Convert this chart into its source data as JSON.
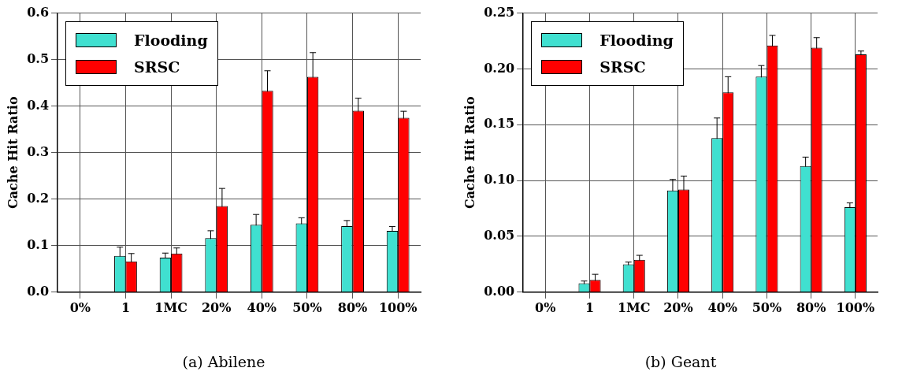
{
  "chart_data": [
    {
      "type": "bar",
      "title": "(a) Abilene",
      "ylabel": "Cache Hit Ratio",
      "categories": [
        "0%",
        "1",
        "1MC",
        "20%",
        "40%",
        "50%",
        "80%",
        "100%"
      ],
      "series": [
        {
          "name": "Flooding",
          "color": "#40e0d0",
          "values": [
            0,
            0.078,
            0.074,
            0.116,
            0.145,
            0.148,
            0.142,
            0.132
          ],
          "errors": [
            null,
            0.019,
            0.01,
            0.016,
            0.022,
            0.012,
            0.012,
            0.009
          ]
        },
        {
          "name": "SRSC",
          "color": "#ff0000",
          "values": [
            0,
            0.066,
            0.083,
            0.185,
            0.433,
            0.463,
            0.39,
            0.375
          ],
          "errors": [
            null,
            0.017,
            0.012,
            0.038,
            0.043,
            0.052,
            0.027,
            0.014
          ]
        }
      ],
      "ylim": [
        0,
        0.6
      ],
      "yticks": [
        {
          "value": 0,
          "label": "0.0"
        },
        0.1,
        0.2,
        0.3,
        0.4,
        0.5,
        0.6
      ],
      "grid": true,
      "legend": "top left"
    },
    {
      "type": "bar",
      "title": "(b) Geant",
      "ylabel": "Cache Hit Ratio",
      "categories": [
        "0%",
        "1",
        "1MC",
        "20%",
        "40%",
        "50%",
        "80%",
        "100%"
      ],
      "series": [
        {
          "name": "Flooding",
          "color": "#40e0d0",
          "values": [
            0,
            0.008,
            0.025,
            0.091,
            0.138,
            0.193,
            0.113,
            0.076
          ],
          "errors": [
            null,
            0.002,
            0.002,
            0.01,
            0.018,
            0.01,
            0.008,
            0.004
          ]
        },
        {
          "name": "SRSC",
          "color": "#ff0000",
          "values": [
            0,
            0.011,
            0.029,
            0.092,
            0.179,
            0.221,
            0.219,
            0.213
          ],
          "errors": [
            null,
            0.005,
            0.004,
            0.012,
            0.014,
            0.009,
            0.009,
            0.003
          ]
        }
      ],
      "ylim": [
        0,
        0.25
      ],
      "yticks": [
        {
          "value": 0,
          "label": "0.00"
        },
        0.05,
        {
          "value": 0.1,
          "label": "0.10"
        },
        0.15,
        {
          "value": 0.2,
          "label": "0.20"
        },
        0.25
      ],
      "grid": true,
      "legend": "top left"
    }
  ]
}
